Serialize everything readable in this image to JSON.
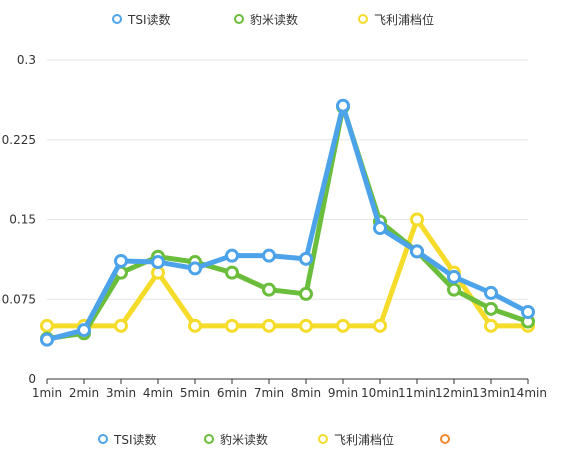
{
  "chart_data": {
    "type": "line",
    "categories": [
      "1min",
      "2min",
      "3min",
      "4min",
      "5min",
      "6min",
      "7min",
      "8min",
      "9min",
      "10min",
      "11min",
      "12min",
      "13min",
      "14min"
    ],
    "ylim": [
      0,
      0.3
    ],
    "yticks": [
      "0",
      "0.075",
      "0.15",
      "0.225",
      "0.3"
    ],
    "grid": true,
    "legend_placement": "top and bottom",
    "series": [
      {
        "name": "TSI读数",
        "color": "#4da3ea",
        "values": [
          0.037,
          0.046,
          0.111,
          0.11,
          0.104,
          0.116,
          0.116,
          0.113,
          0.257,
          0.142,
          0.12,
          0.096,
          0.081,
          0.063
        ]
      },
      {
        "name": "豹米读数",
        "color": "#6bbd3c",
        "values": [
          0.038,
          0.043,
          0.1,
          0.115,
          0.11,
          0.1,
          0.084,
          0.08,
          0.256,
          0.148,
          0.12,
          0.084,
          0.066,
          0.054
        ]
      },
      {
        "name": "飞利浦档位",
        "color": "#f5dc2a",
        "values": [
          0.05,
          0.05,
          0.05,
          0.1,
          0.05,
          0.05,
          0.05,
          0.05,
          0.05,
          0.05,
          0.15,
          0.1,
          0.05,
          0.05
        ]
      }
    ]
  },
  "legend_top": [
    {
      "label": "TSI读数",
      "color": "#4da3ea"
    },
    {
      "label": "豹米读数",
      "color": "#6bbd3c"
    },
    {
      "label": "飞利浦档位",
      "color": "#f5dc2a"
    }
  ],
  "legend_bottom": [
    {
      "label": "TSI读数",
      "color": "#4da3ea"
    },
    {
      "label": "豹米读数",
      "color": "#6bbd3c"
    },
    {
      "label": "飞利浦档位",
      "color": "#f5dc2a"
    },
    {
      "label": "",
      "color": "#f08a2c"
    }
  ]
}
